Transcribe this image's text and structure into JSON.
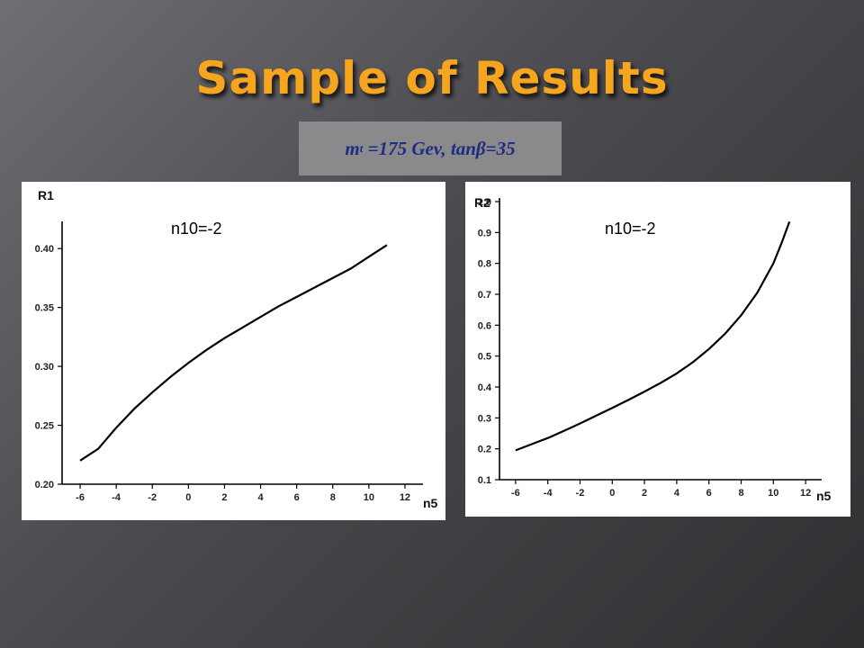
{
  "slide": {
    "title": "Sample of Results",
    "subtitle": {
      "mass_symbol": "m",
      "mass_subscript": "t",
      "rest": " =175 Gev, tanβ=35"
    }
  },
  "chart_data": [
    {
      "type": "line",
      "ylabel": "R1",
      "xlabel": "n5",
      "annotation": "n10=-2",
      "xlim": [
        -7,
        13
      ],
      "ylim": [
        0.2,
        0.42
      ],
      "x_ticks": [
        -6,
        -4,
        -2,
        0,
        2,
        4,
        6,
        8,
        10,
        12
      ],
      "y_ticks": [
        0.2,
        0.25,
        0.3,
        0.35,
        0.4
      ],
      "y_tick_labels": [
        "0.20",
        "0.25",
        "0.30",
        "0.35",
        "0.40"
      ],
      "series": [
        {
          "x": [
            -6,
            -5,
            -4,
            -3,
            -2,
            -1,
            0,
            1,
            2,
            3,
            4,
            5,
            6,
            7,
            8,
            9,
            10,
            11
          ],
          "values": [
            0.22,
            0.23,
            0.248,
            0.264,
            0.278,
            0.291,
            0.303,
            0.314,
            0.324,
            0.333,
            0.342,
            0.351,
            0.359,
            0.367,
            0.375,
            0.383,
            0.393,
            0.403
          ]
        }
      ]
    },
    {
      "type": "line",
      "ylabel": "R2",
      "xlabel": "n5",
      "annotation": "n10=-2",
      "xlim": [
        -7,
        13
      ],
      "ylim": [
        0.1,
        1.0
      ],
      "x_ticks": [
        -6,
        -4,
        -2,
        0,
        2,
        4,
        6,
        8,
        10,
        12
      ],
      "y_ticks": [
        0.1,
        0.2,
        0.3,
        0.4,
        0.5,
        0.6,
        0.7,
        0.8,
        0.9,
        1.0
      ],
      "y_tick_labels": [
        "0.1",
        "0.2",
        "0.3",
        "0.4",
        "0.5",
        "0.6",
        "0.7",
        "0.8",
        "0.9",
        "1.0"
      ],
      "series": [
        {
          "x": [
            -6,
            -5,
            -4,
            -3,
            -2,
            -1,
            0,
            1,
            2,
            3,
            4,
            5,
            6,
            7,
            8,
            9,
            10,
            10.5,
            11
          ],
          "values": [
            0.195,
            0.215,
            0.235,
            0.258,
            0.282,
            0.307,
            0.332,
            0.358,
            0.385,
            0.413,
            0.444,
            0.48,
            0.523,
            0.572,
            0.632,
            0.705,
            0.8,
            0.865,
            0.935
          ]
        }
      ]
    }
  ]
}
